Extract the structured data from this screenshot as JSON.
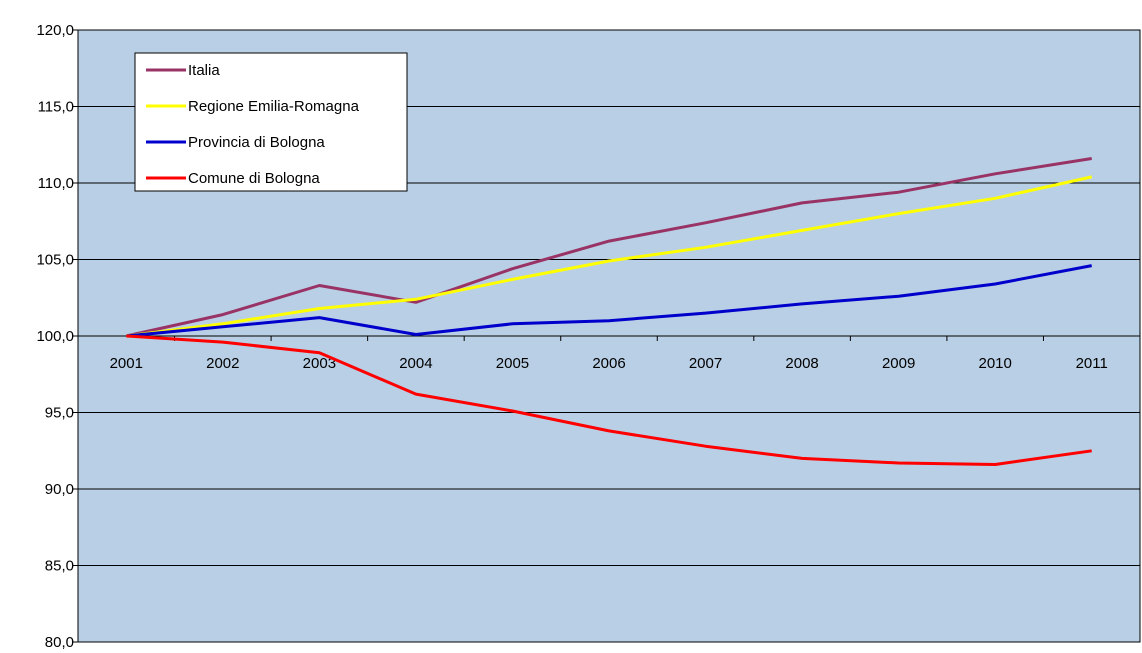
{
  "chart_data": {
    "type": "line",
    "title": "",
    "xlabel": "",
    "ylabel": "",
    "x": [
      "2001",
      "2002",
      "2003",
      "2004",
      "2005",
      "2006",
      "2007",
      "2008",
      "2009",
      "2010",
      "2011"
    ],
    "y_ticks": [
      "120,0",
      "115,0",
      "110,0",
      "105,0",
      "100,0",
      "95,0",
      "90,0",
      "85,0",
      "80,0"
    ],
    "ylim": [
      80,
      120
    ],
    "x_axis_crosses_at": 100,
    "grid": "horizontal",
    "legend_position": "top-left",
    "plot_background": "#B9CFE5",
    "series": [
      {
        "name": "Italia",
        "color": "#993366",
        "values": [
          100.0,
          101.4,
          103.3,
          102.2,
          104.4,
          106.2,
          107.4,
          108.7,
          109.4,
          110.6,
          111.6
        ]
      },
      {
        "name": "Regione Emilia-Romagna",
        "color": "#FFFF00",
        "values": [
          100.0,
          100.8,
          101.8,
          102.4,
          103.7,
          104.9,
          105.8,
          106.9,
          108.0,
          109.0,
          110.4
        ]
      },
      {
        "name": "Provincia di Bologna",
        "color": "#0000CC",
        "values": [
          100.0,
          100.6,
          101.2,
          100.1,
          100.8,
          101.0,
          101.5,
          102.1,
          102.6,
          103.4,
          104.6
        ]
      },
      {
        "name": "Comune di Bologna",
        "color": "#FF0000",
        "values": [
          100.0,
          99.6,
          98.9,
          96.2,
          95.1,
          93.8,
          92.8,
          92.0,
          91.7,
          91.6,
          92.5
        ]
      }
    ]
  }
}
